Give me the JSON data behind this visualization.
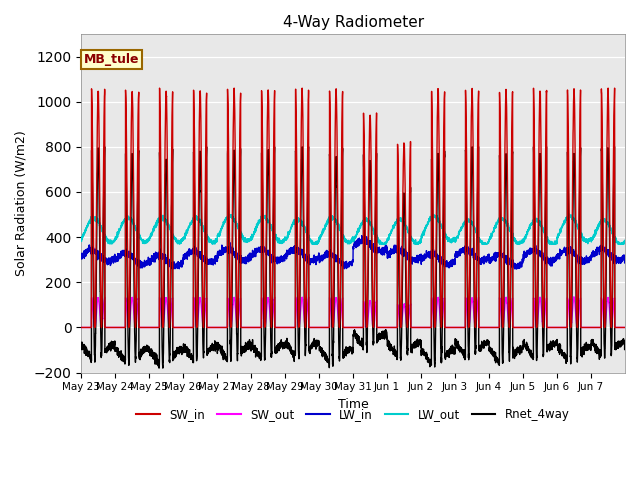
{
  "title": "4-Way Radiometer",
  "xlabel": "Time",
  "ylabel": "Solar Radiation (W/m2)",
  "ylim": [
    -200,
    1300
  ],
  "annotation_text": "MB_tule",
  "annotation_box_color": "#FFFFCC",
  "annotation_text_color": "#8B0000",
  "plot_bg_color": "#E8E8E8",
  "fig_bg_color": "#FFFFFF",
  "series": {
    "SW_in": {
      "color": "#CC0000",
      "lw": 1.0
    },
    "SW_out": {
      "color": "#FF00FF",
      "lw": 1.0
    },
    "LW_in": {
      "color": "#0000CC",
      "lw": 1.0
    },
    "LW_out": {
      "color": "#00CCCC",
      "lw": 1.0
    },
    "Rnet_4way": {
      "color": "#000000",
      "lw": 1.0
    }
  },
  "tick_labels": [
    "May 23",
    "May 24",
    "May 25",
    "May 26",
    "May 27",
    "May 28",
    "May 29",
    "May 30",
    "May 31",
    "Jun 1",
    "Jun 2",
    "Jun 3",
    "Jun 4",
    "Jun 5",
    "Jun 6",
    "Jun 7"
  ],
  "n_days": 16,
  "pts_per_day": 288
}
